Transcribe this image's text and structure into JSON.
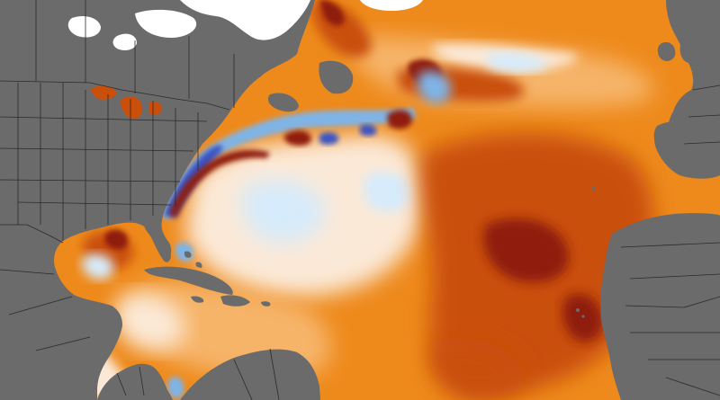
{
  "map": {
    "colors": {
      "land": "#6b6b6b",
      "borders": "#2b2b2b",
      "ice_white": "#ffffff",
      "anomaly_very_warm": "#8f1d08",
      "anomaly_warm": "#c94f0a",
      "anomaly_mild_warm": "#ee8a1c",
      "anomaly_slight_warm": "#f6b469",
      "anomaly_neutral": "#fbe9d7",
      "anomaly_slight_cool": "#d6ebfb",
      "anomaly_cool": "#7fb4e6",
      "anomaly_very_cool": "#3b54c4"
    }
  }
}
